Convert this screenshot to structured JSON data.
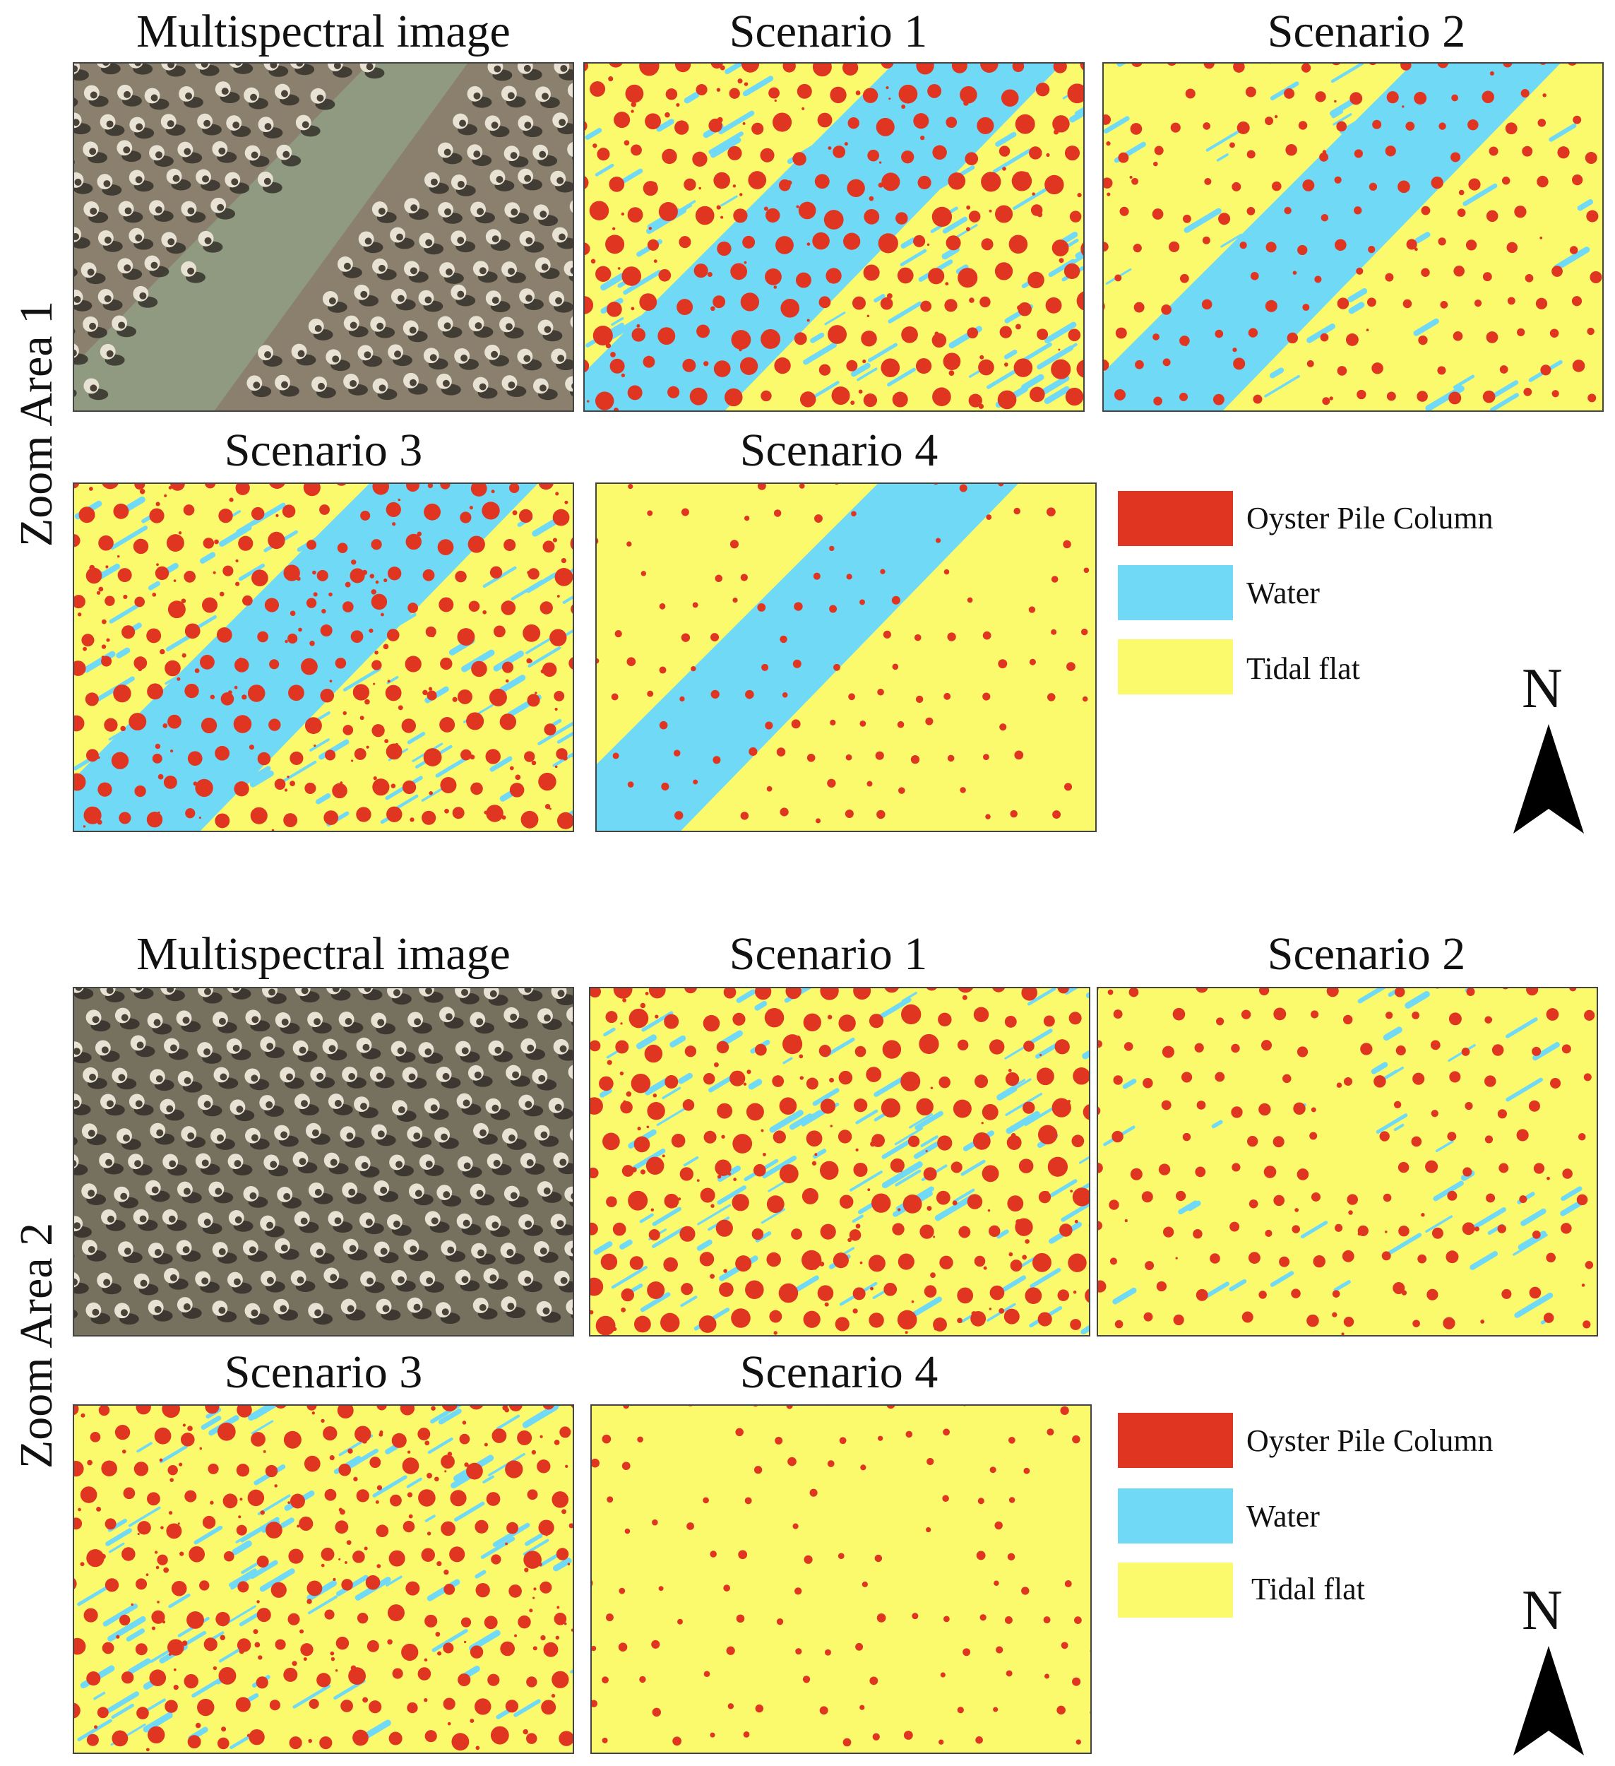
{
  "colors": {
    "oyster": "#e03520",
    "water": "#6fd9f6",
    "flat": "#fbfa6c"
  },
  "areas": [
    {
      "label": "Zoom Area 1",
      "panels": [
        {
          "title": "Multispectral image",
          "kind": "photo",
          "variant": "river"
        },
        {
          "title": "Scenario 1",
          "kind": "map",
          "variant": "s1-river"
        },
        {
          "title": "Scenario 2",
          "kind": "map",
          "variant": "s2-river"
        },
        {
          "title": "Scenario 3",
          "kind": "map",
          "variant": "s3-river"
        },
        {
          "title": "Scenario 4",
          "kind": "map",
          "variant": "s4-river"
        }
      ],
      "legend": [
        "Oyster Pile Column",
        "Water",
        "Tidal flat"
      ],
      "north": "N"
    },
    {
      "label": "Zoom Area 2",
      "panels": [
        {
          "title": "Multispectral image",
          "kind": "photo",
          "variant": "flat"
        },
        {
          "title": "Scenario 1",
          "kind": "map",
          "variant": "s1-flat"
        },
        {
          "title": "Scenario 2",
          "kind": "map",
          "variant": "s2-flat"
        },
        {
          "title": "Scenario 3",
          "kind": "map",
          "variant": "s3-flat"
        },
        {
          "title": "Scenario 4",
          "kind": "map",
          "variant": "s4-flat"
        }
      ],
      "legend": [
        "Oyster Pile Column",
        "Water",
        "Tidal flat"
      ],
      "north": "N"
    }
  ]
}
